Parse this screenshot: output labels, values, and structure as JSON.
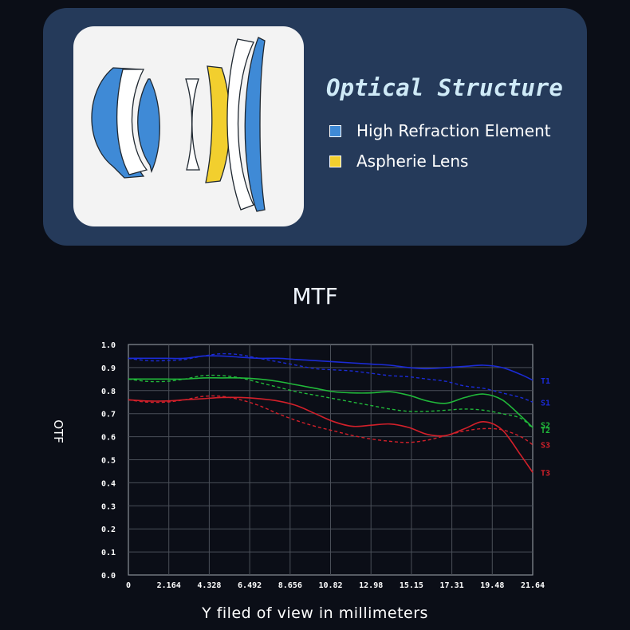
{
  "optical_structure": {
    "title": "Optical Structure",
    "legend": [
      {
        "label": "High Refraction Element",
        "color": "#3f8ad6"
      },
      {
        "label": "Aspherie Lens",
        "color": "#f2cf2e"
      }
    ]
  },
  "chart_data": {
    "type": "line",
    "title": "MTF",
    "xlabel": "Y filed of view in millimeters",
    "ylabel": "OTF",
    "xlim": [
      0,
      21.64
    ],
    "ylim": [
      0,
      1.0
    ],
    "x_ticks": [
      "0",
      "2.164",
      "4.328",
      "6.492",
      "8.656",
      "10.82",
      "12.98",
      "15.15",
      "17.31",
      "19.48",
      "21.64"
    ],
    "y_ticks": [
      "0.0",
      "0.1",
      "0.2",
      "0.3",
      "0.4",
      "0.5",
      "0.6",
      "0.7",
      "0.8",
      "0.9",
      "1.0"
    ],
    "grid": true,
    "series": [
      {
        "name": "T1",
        "color": "#1b2bd6",
        "dashed": false,
        "x": [
          0,
          1,
          2,
          3,
          4,
          5,
          6,
          7,
          8,
          9,
          10,
          11,
          12,
          13,
          14,
          15,
          16,
          17,
          18,
          19,
          20,
          21,
          21.64
        ],
        "y": [
          0.94,
          0.94,
          0.94,
          0.94,
          0.95,
          0.95,
          0.945,
          0.94,
          0.94,
          0.935,
          0.93,
          0.925,
          0.92,
          0.915,
          0.91,
          0.9,
          0.895,
          0.9,
          0.905,
          0.91,
          0.9,
          0.87,
          0.845
        ]
      },
      {
        "name": "S1",
        "color": "#1b2bd6",
        "dashed": true,
        "x": [
          0,
          1,
          2,
          3,
          4,
          5,
          6,
          7,
          8,
          9,
          10,
          11,
          12,
          13,
          14,
          15,
          16,
          17,
          18,
          19,
          20,
          21,
          21.64
        ],
        "y": [
          0.94,
          0.93,
          0.93,
          0.935,
          0.95,
          0.96,
          0.955,
          0.94,
          0.925,
          0.91,
          0.895,
          0.89,
          0.885,
          0.875,
          0.865,
          0.86,
          0.85,
          0.84,
          0.82,
          0.81,
          0.79,
          0.77,
          0.75
        ]
      },
      {
        "name": "T2",
        "color": "#21b83a",
        "dashed": false,
        "x": [
          0,
          1,
          2,
          3,
          4,
          5,
          6,
          7,
          8,
          9,
          10,
          11,
          12,
          13,
          14,
          15,
          16,
          17,
          18,
          19,
          20,
          21,
          21.64
        ],
        "y": [
          0.85,
          0.85,
          0.85,
          0.85,
          0.855,
          0.855,
          0.855,
          0.85,
          0.84,
          0.825,
          0.81,
          0.795,
          0.79,
          0.79,
          0.795,
          0.78,
          0.755,
          0.745,
          0.77,
          0.785,
          0.76,
          0.69,
          0.64
        ]
      },
      {
        "name": "S2",
        "color": "#21b83a",
        "dashed": true,
        "x": [
          0,
          1,
          2,
          3,
          4,
          5,
          6,
          7,
          8,
          9,
          10,
          11,
          12,
          13,
          14,
          15,
          16,
          17,
          18,
          19,
          20,
          21,
          21.64
        ],
        "y": [
          0.85,
          0.84,
          0.84,
          0.85,
          0.865,
          0.865,
          0.855,
          0.835,
          0.815,
          0.795,
          0.78,
          0.765,
          0.75,
          0.735,
          0.72,
          0.71,
          0.71,
          0.715,
          0.72,
          0.715,
          0.7,
          0.68,
          0.635
        ]
      },
      {
        "name": "T3",
        "color": "#d3202a",
        "dashed": false,
        "x": [
          0,
          1,
          2,
          3,
          4,
          5,
          6,
          7,
          8,
          9,
          10,
          11,
          12,
          13,
          14,
          15,
          16,
          17,
          18,
          19,
          20,
          21,
          21.64
        ],
        "y": [
          0.76,
          0.755,
          0.755,
          0.76,
          0.765,
          0.77,
          0.77,
          0.765,
          0.755,
          0.735,
          0.7,
          0.665,
          0.645,
          0.65,
          0.655,
          0.64,
          0.61,
          0.605,
          0.635,
          0.665,
          0.63,
          0.52,
          0.445
        ]
      },
      {
        "name": "S3",
        "color": "#d3202a",
        "dashed": true,
        "x": [
          0,
          1,
          2,
          3,
          4,
          5,
          6,
          7,
          8,
          9,
          10,
          11,
          12,
          13,
          14,
          15,
          16,
          17,
          18,
          19,
          20,
          21,
          21.64
        ],
        "y": [
          0.76,
          0.75,
          0.75,
          0.76,
          0.775,
          0.775,
          0.76,
          0.735,
          0.7,
          0.67,
          0.645,
          0.625,
          0.605,
          0.59,
          0.58,
          0.575,
          0.585,
          0.605,
          0.625,
          0.635,
          0.63,
          0.6,
          0.565
        ]
      }
    ]
  }
}
